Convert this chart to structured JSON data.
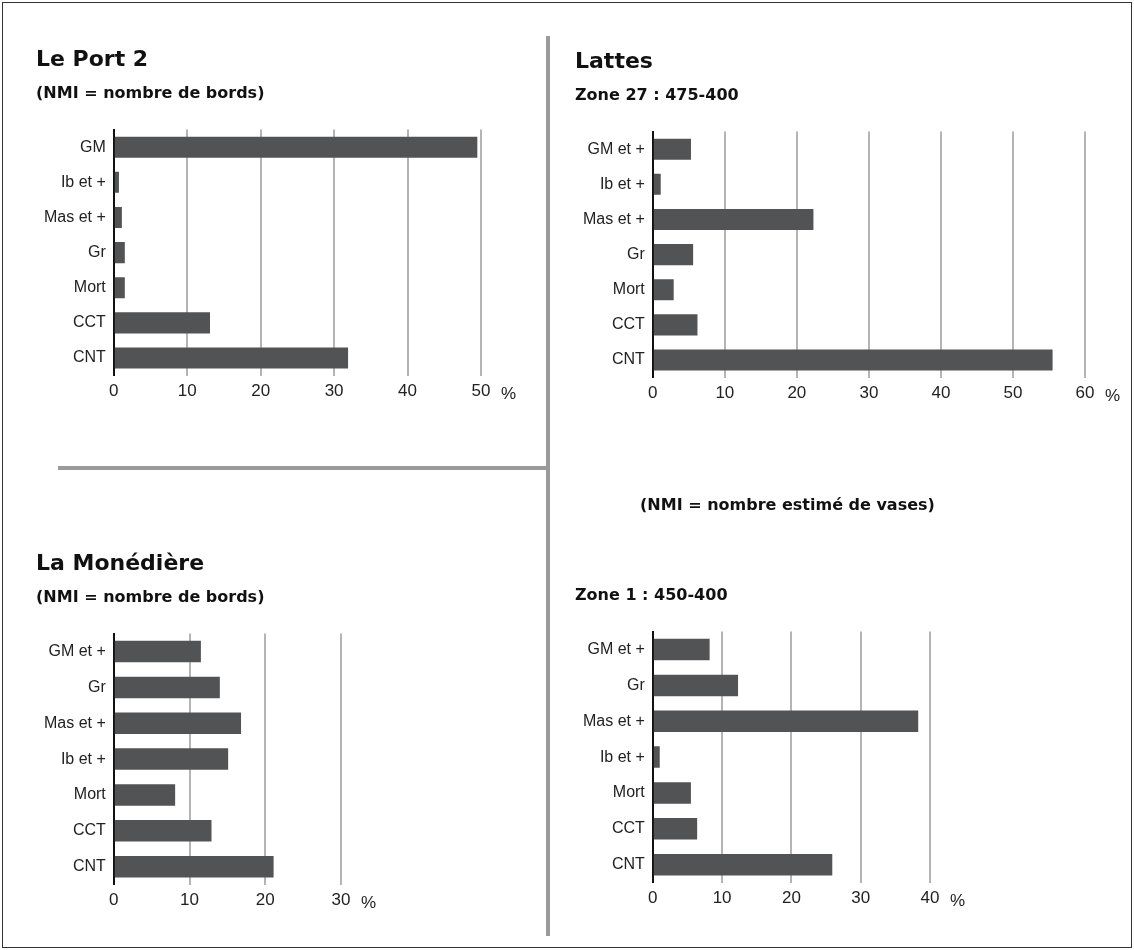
{
  "chart_data": [
    {
      "type": "bar",
      "orientation": "horizontal",
      "title": "Le Port 2",
      "subtitle": "(NMI = nombre de bords)",
      "xlabel": "%",
      "categories": [
        "GM",
        "Ib et +",
        "Mas et +",
        "Gr",
        "Mort",
        "CCT",
        "CNT"
      ],
      "values": [
        49.5,
        0.7,
        1.1,
        1.5,
        1.5,
        13.1,
        31.9
      ],
      "color": "#525355",
      "xlim": [
        0,
        50
      ],
      "xticks": [
        0,
        10,
        20,
        30,
        40,
        50
      ],
      "grid": "x"
    },
    {
      "type": "bar",
      "orientation": "horizontal",
      "title": "Lattes",
      "subtitle": "Zone 27 : 475-400",
      "xlabel": "%",
      "categories": [
        "GM et +",
        "Ib et +",
        "Mas et +",
        "Gr",
        "Mort",
        "CCT",
        "CNT"
      ],
      "values": [
        5.3,
        1.1,
        22.3,
        5.6,
        2.9,
        6.2,
        55.5
      ],
      "color": "#525355",
      "xlim": [
        0,
        60
      ],
      "xticks": [
        0,
        10,
        20,
        30,
        40,
        50,
        60
      ],
      "grid": "x",
      "annotations": [
        "(NMI = nombre estimé de vases)"
      ]
    },
    {
      "type": "bar",
      "orientation": "horizontal",
      "title": "La Monédière",
      "subtitle": "(NMI = nombre de bords)",
      "xlabel": "%",
      "categories": [
        "GM et +",
        "Gr",
        "Mas et +",
        "Ib et +",
        "Mort",
        "CCT",
        "CNT"
      ],
      "values": [
        11.5,
        14.0,
        16.8,
        15.1,
        8.1,
        12.9,
        21.1
      ],
      "color": "#525355",
      "xlim": [
        0,
        30
      ],
      "xticks": [
        0,
        10,
        20,
        30
      ],
      "grid": "x"
    },
    {
      "type": "bar",
      "orientation": "horizontal",
      "title": "Zone 1 : 450-400",
      "xlabel": "%",
      "categories": [
        "GM et +",
        "Gr",
        "Mas et +",
        "Ib et +",
        "Mort",
        "CCT",
        "CNT"
      ],
      "values": [
        8.2,
        12.3,
        38.3,
        1.0,
        5.5,
        6.4,
        25.9
      ],
      "color": "#525355",
      "xlim": [
        0,
        40
      ],
      "xticks": [
        0,
        10,
        20,
        30,
        40
      ],
      "grid": "x"
    }
  ]
}
